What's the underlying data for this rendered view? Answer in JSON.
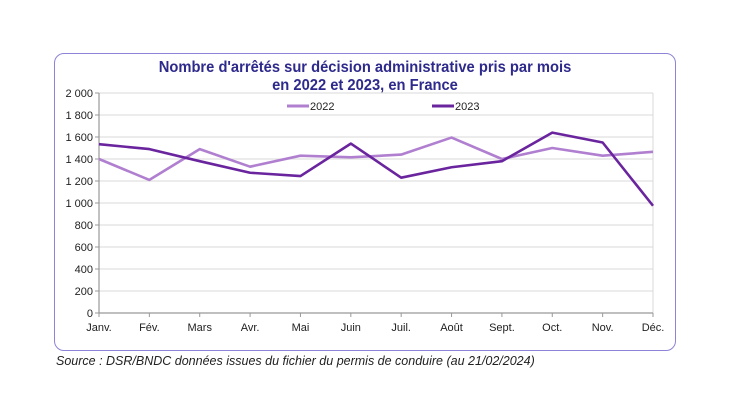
{
  "chart_data": {
    "type": "line",
    "title_line1": "Nombre d'arrêtés sur décision administrative pris par mois",
    "title_line2": "en 2022 et 2023, en France",
    "categories": [
      "Janv.",
      "Fév.",
      "Mars",
      "Avr.",
      "Mai",
      "Juin",
      "Juil.",
      "Août",
      "Sept.",
      "Oct.",
      "Nov.",
      "Déc."
    ],
    "yticks": [
      "0",
      "200",
      "400",
      "600",
      "800",
      "1 000",
      "1 200",
      "1 400",
      "1 600",
      "1 800",
      "2 000"
    ],
    "ylim": [
      0,
      2000
    ],
    "grid": true,
    "legend": "top-center",
    "series": [
      {
        "name": "2022",
        "color": "#b07fd0",
        "values": [
          1400,
          1210,
          1490,
          1330,
          1430,
          1415,
          1440,
          1595,
          1400,
          1500,
          1430,
          1465
        ]
      },
      {
        "name": "2023",
        "color": "#6a259e",
        "values": [
          1535,
          1490,
          1380,
          1275,
          1245,
          1540,
          1230,
          1325,
          1380,
          1640,
          1550,
          975
        ]
      }
    ]
  },
  "source": "Source : DSR/BNDC données issues du fichier du permis de conduire (au 21/02/2024)"
}
